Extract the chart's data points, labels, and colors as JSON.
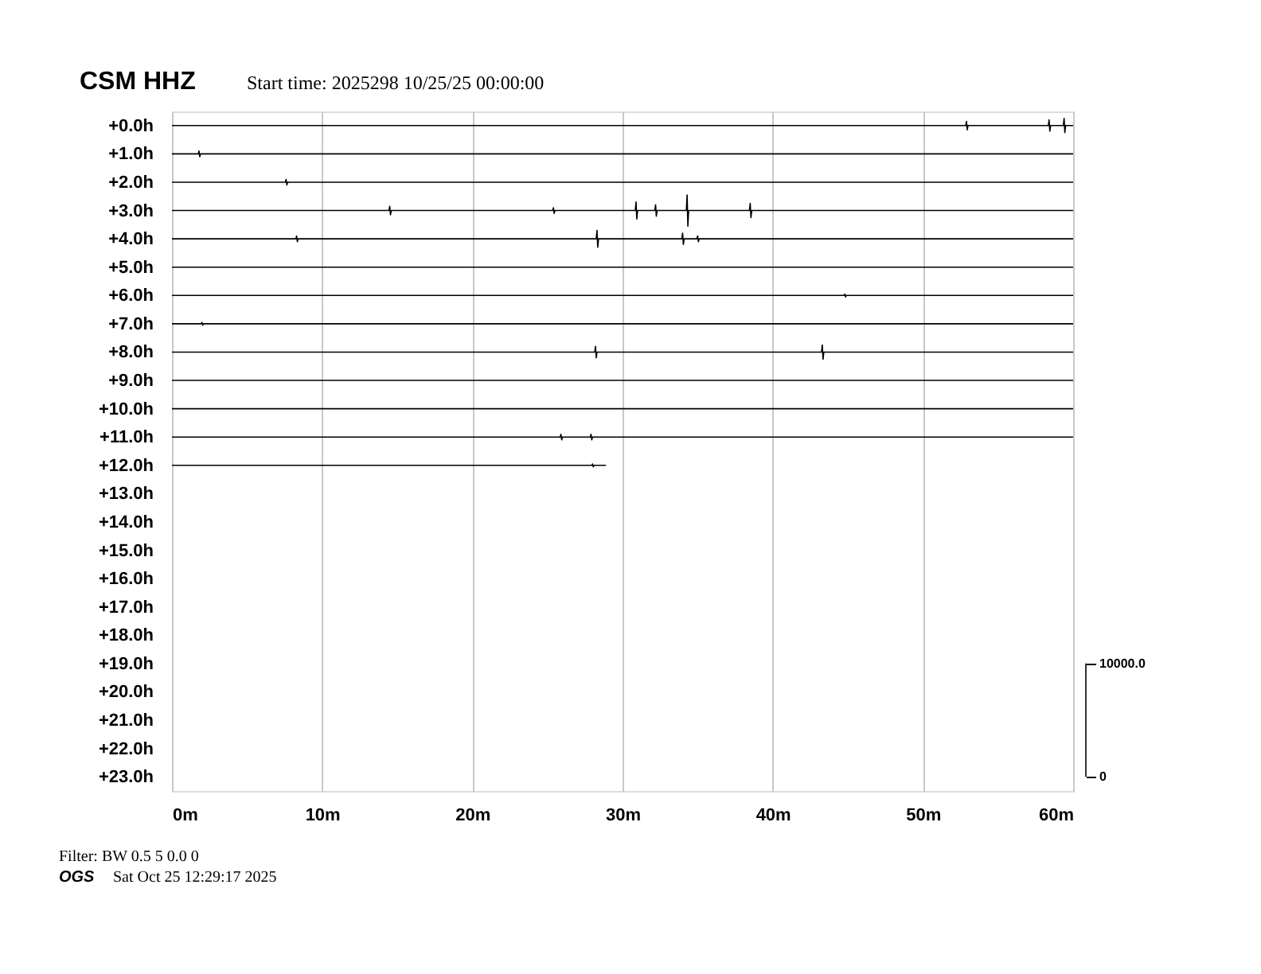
{
  "chart_data": {
    "type": "line",
    "title": "CSM HHZ",
    "subtitle": "Start time: 2025298 10/25/25 00:00:00",
    "annotations": [
      "Filter: BW 0.5 5 0.0 0",
      "OGS",
      "Sat Oct 25 12:29:17 2025"
    ],
    "xlim": [
      0,
      60
    ],
    "xticks": [
      {
        "value": 0,
        "label": "0m"
      },
      {
        "value": 10,
        "label": "10m"
      },
      {
        "value": 20,
        "label": "20m"
      },
      {
        "value": 30,
        "label": "30m"
      },
      {
        "value": 40,
        "label": "40m"
      },
      {
        "value": 50,
        "label": "50m"
      },
      {
        "value": 60,
        "label": "60m"
      }
    ],
    "ylim": [
      23.5,
      -0.5
    ],
    "yticks": [
      {
        "value": 0,
        "label": "+0.0h"
      },
      {
        "value": 1,
        "label": "+1.0h"
      },
      {
        "value": 2,
        "label": "+2.0h"
      },
      {
        "value": 3,
        "label": "+3.0h"
      },
      {
        "value": 4,
        "label": "+4.0h"
      },
      {
        "value": 5,
        "label": "+5.0h"
      },
      {
        "value": 6,
        "label": "+6.0h"
      },
      {
        "value": 7,
        "label": "+7.0h"
      },
      {
        "value": 8,
        "label": "+8.0h"
      },
      {
        "value": 9,
        "label": "+9.0h"
      },
      {
        "value": 10,
        "label": "+10.0h"
      },
      {
        "value": 11,
        "label": "+11.0h"
      },
      {
        "value": 12,
        "label": "+12.0h"
      },
      {
        "value": 13,
        "label": "+13.0h"
      },
      {
        "value": 14,
        "label": "+14.0h"
      },
      {
        "value": 15,
        "label": "+15.0h"
      },
      {
        "value": 16,
        "label": "+16.0h"
      },
      {
        "value": 17,
        "label": "+17.0h"
      },
      {
        "value": 18,
        "label": "+18.0h"
      },
      {
        "value": 19,
        "label": "+19.0h"
      },
      {
        "value": 20,
        "label": "+20.0h"
      },
      {
        "value": 21,
        "label": "+21.0h"
      },
      {
        "value": 22,
        "label": "+22.0h"
      },
      {
        "value": 23,
        "label": "+23.0h"
      }
    ],
    "y2lim": [
      -1250,
      58750
    ],
    "y2ticks": [
      0,
      {
        "value": 10000,
        "label": "10000.0"
      }
    ],
    "grid": "x",
    "legend": false,
    "marker": "none",
    "line_style": "solid",
    "series": [
      {
        "color": "#000000",
        "x": [
          0,
          52.85,
          52.9,
          52.95,
          53.0,
          58.35,
          58.4,
          58.45,
          58.5,
          59.35,
          59.4,
          59.45,
          59.5,
          60
        ],
        "values": [
          0,
          0,
          -0.15,
          0.15,
          0,
          0,
          -0.2,
          0.2,
          0,
          0,
          -0.25,
          0.25,
          0,
          0
        ]
      },
      {
        "color": "#000000",
        "x": [
          0,
          1.75,
          1.8,
          1.85,
          1.9,
          60
        ],
        "values": [
          1,
          1,
          0.9,
          1.1,
          1,
          1
        ]
      },
      {
        "color": "#000000",
        "x": [
          0,
          7.55,
          7.6,
          7.65,
          7.7,
          60
        ],
        "values": [
          2,
          2,
          1.9,
          2.1,
          2,
          2
        ]
      },
      {
        "color": "#000000",
        "x": [
          0,
          14.45,
          14.5,
          14.55,
          14.6,
          25.35,
          25.4,
          25.45,
          25.5,
          30.85,
          30.9,
          30.95,
          31.0,
          32.15,
          32.2,
          32.25,
          32.3,
          34.25,
          34.3,
          34.35,
          34.4,
          38.45,
          38.5,
          38.55,
          38.6,
          60
        ],
        "values": [
          3,
          3,
          2.85,
          3.15,
          3,
          3,
          2.9,
          3.1,
          3,
          3,
          2.7,
          3.3,
          3,
          3,
          2.8,
          3.2,
          3,
          3,
          2.45,
          3.55,
          3,
          3,
          2.75,
          3.25,
          3,
          3
        ]
      },
      {
        "color": "#000000",
        "x": [
          0,
          8.25,
          8.3,
          8.35,
          8.4,
          28.25,
          28.3,
          28.35,
          28.4,
          33.95,
          34.0,
          34.05,
          34.1,
          34.95,
          35.0,
          35.05,
          35.1,
          60
        ],
        "values": [
          4,
          4,
          3.9,
          4.1,
          4,
          4,
          3.7,
          4.3,
          4,
          4,
          3.8,
          4.2,
          4,
          4,
          3.9,
          4.1,
          4,
          4
        ]
      },
      {
        "color": "#000000",
        "x": [
          0,
          60
        ],
        "values": [
          5,
          5
        ]
      },
      {
        "color": "#000000",
        "x": [
          0,
          44.75,
          44.8,
          44.85,
          44.9,
          60
        ],
        "values": [
          6,
          6,
          5.95,
          6.05,
          6,
          6
        ]
      },
      {
        "color": "#000000",
        "x": [
          0,
          1.95,
          2.0,
          2.05,
          2.1,
          60
        ],
        "values": [
          7,
          7,
          6.95,
          7.05,
          7,
          7
        ]
      },
      {
        "color": "#000000",
        "x": [
          0,
          28.15,
          28.2,
          28.25,
          28.3,
          43.25,
          43.3,
          43.35,
          43.4,
          60
        ],
        "values": [
          8,
          8,
          7.8,
          8.2,
          8,
          8,
          7.75,
          8.25,
          8,
          8
        ]
      },
      {
        "color": "#000000",
        "x": [
          0,
          60
        ],
        "values": [
          9,
          9
        ]
      },
      {
        "color": "#000000",
        "x": [
          0,
          60
        ],
        "values": [
          10,
          10
        ]
      },
      {
        "color": "#000000",
        "x": [
          0,
          25.85,
          25.9,
          25.95,
          26.0,
          27.85,
          27.9,
          27.95,
          28.0,
          60
        ],
        "values": [
          11,
          11,
          10.9,
          11.1,
          11,
          11,
          10.9,
          11.1,
          11,
          11
        ]
      },
      {
        "color": "#000000",
        "x": [
          0,
          27.95,
          28.0,
          28.05,
          28.1,
          28.9
        ],
        "values": [
          12,
          12,
          11.95,
          12.05,
          12,
          12
        ]
      }
    ]
  }
}
